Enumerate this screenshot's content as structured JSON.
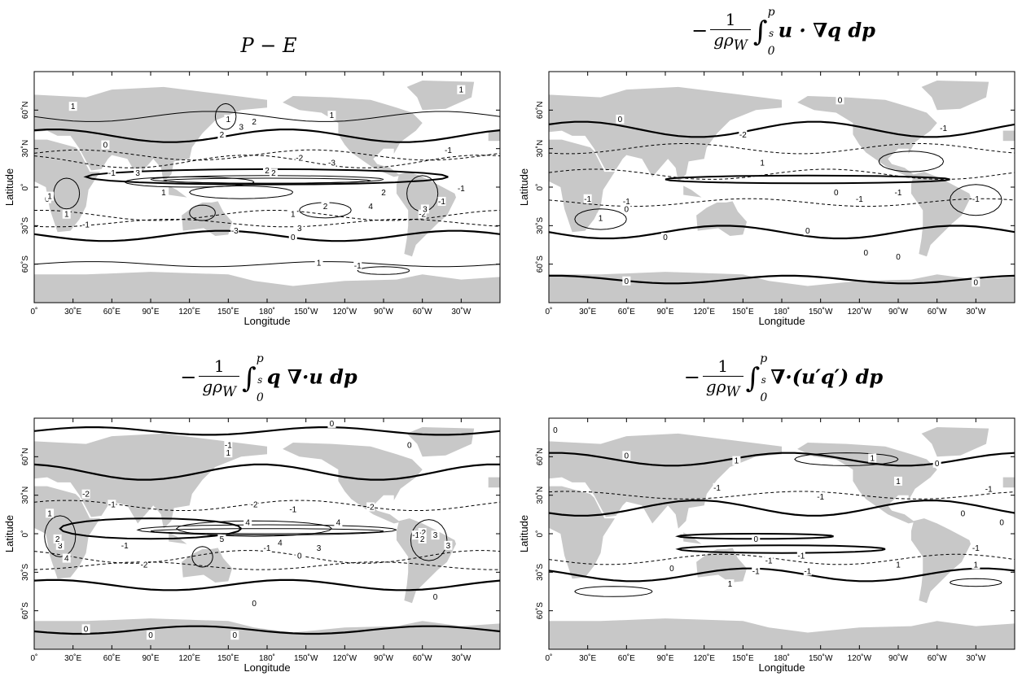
{
  "axes": {
    "xlabel": "Longitude",
    "ylabel": "Latitude",
    "xticks": [
      "0˚",
      "30˚E",
      "60˚E",
      "90˚E",
      "120˚E",
      "150˚E",
      "180˚",
      "150˚W",
      "120˚W",
      "90˚W",
      "60˚W",
      "30˚W"
    ],
    "yticks": [
      "60˚N",
      "30˚N",
      "0˚",
      "30˚S",
      "60˚S"
    ]
  },
  "panels": [
    {
      "id": "p-minus-e",
      "title": "P − E",
      "contour_labels": [
        "1",
        "1",
        "1",
        "1",
        "2",
        "2",
        "3",
        "-1",
        "-2",
        "-3",
        "0",
        "2",
        "3",
        "2",
        "2",
        "-1",
        "1",
        "-2",
        "-3",
        "2",
        "3",
        "4",
        "-1",
        "1",
        "0",
        "-1",
        "0",
        "-1",
        "1",
        "-1",
        "1",
        "1",
        "3"
      ]
    },
    {
      "id": "advection-term",
      "title": "−(1/gρW) ∫₀^ps u·∇q dp",
      "title_parts": {
        "num": "1",
        "den": "gρ",
        "sub": "W",
        "upper": "p",
        "upper_sub": "s",
        "lower": "0",
        "expr": "u · ∇q dp"
      },
      "contour_labels": [
        "0",
        "0",
        "-1",
        "-2",
        "1",
        "-1",
        "0",
        "-1",
        "0",
        "-1",
        "-1",
        "1",
        "0",
        "-1",
        "0",
        "0",
        "0",
        "0",
        "0"
      ]
    },
    {
      "id": "convergence-term",
      "title": "−(1/gρW) ∫₀^ps q ∇·u dp",
      "title_parts": {
        "num": "1",
        "den": "gρ",
        "sub": "W",
        "upper": "p",
        "upper_sub": "s",
        "lower": "0",
        "expr": "q ∇·u dp"
      },
      "contour_labels": [
        "0",
        "0",
        "-1",
        "1",
        "-2",
        "-1",
        "-2",
        "0",
        "1",
        "3",
        "2",
        "4",
        "4",
        "5",
        "4",
        "3",
        "-1",
        "0",
        "-2",
        "-1",
        "2",
        "3",
        "3",
        "4",
        "-1",
        "-2",
        "0",
        "0",
        "0",
        "0",
        "-2",
        "-1"
      ]
    },
    {
      "id": "transient-term",
      "title": "−(1/gρW) ∫₀^ps ∇·(u′q′) dp",
      "title_parts": {
        "num": "1",
        "den": "gρ",
        "sub": "W",
        "upper": "p",
        "upper_sub": "s",
        "lower": "0",
        "expr": "∇·(u′q′) dp"
      },
      "contour_labels": [
        "0",
        "0",
        "1",
        "0",
        "-1",
        "1",
        "-1",
        "-1",
        "0",
        "1",
        "-1",
        "1",
        "0",
        "-1",
        "1",
        "-1",
        "0",
        "-1",
        "-1",
        "1",
        "0"
      ]
    }
  ],
  "colors": {
    "land": "#c8c8c8",
    "ocean": "#ffffff",
    "contour": "#000000"
  }
}
